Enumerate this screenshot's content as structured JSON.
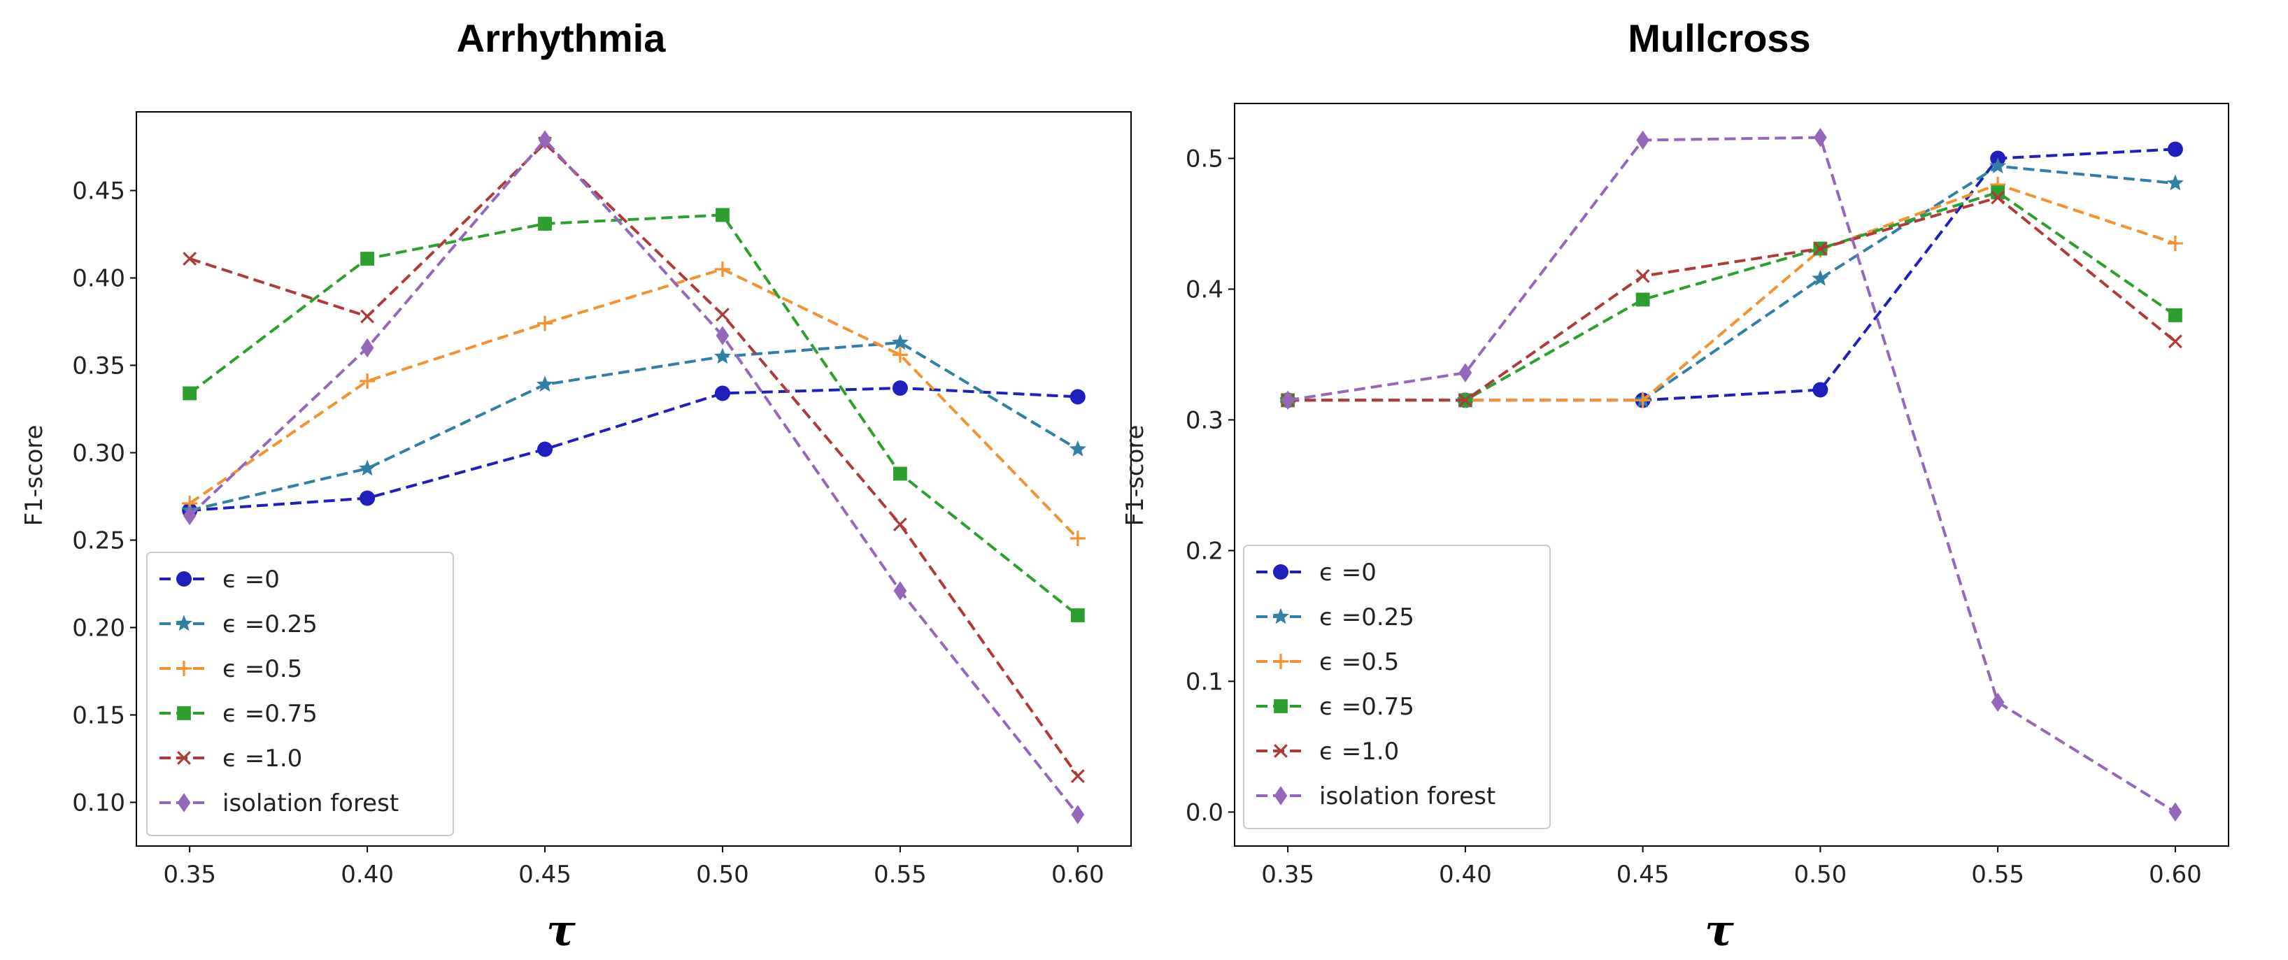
{
  "chart_data": [
    {
      "type": "line",
      "title": "Arrhythmia",
      "xlabel": "τ",
      "ylabel": "F1-score",
      "x": [
        0.35,
        0.4,
        0.45,
        0.5,
        0.55,
        0.6
      ],
      "xticks": [
        "0.35",
        "0.40",
        "0.45",
        "0.50",
        "0.55",
        "0.60"
      ],
      "xlim": [
        0.335,
        0.615
      ],
      "ylim": [
        0.075,
        0.495
      ],
      "yticks": [
        0.1,
        0.15,
        0.2,
        0.25,
        0.3,
        0.35,
        0.4,
        0.45
      ],
      "ytick_labels": [
        "0.10",
        "0.15",
        "0.20",
        "0.25",
        "0.30",
        "0.35",
        "0.40",
        "0.45"
      ],
      "legend_position": "lower-left",
      "series": [
        {
          "name": "ϵ =0",
          "color": "#1f1fbf",
          "marker": "circle",
          "values": [
            0.267,
            0.274,
            0.302,
            0.334,
            0.337,
            0.332
          ]
        },
        {
          "name": "ϵ =0.25",
          "color": "#2f7fa6",
          "marker": "star",
          "values": [
            0.267,
            0.291,
            0.339,
            0.355,
            0.363,
            0.302
          ]
        },
        {
          "name": "ϵ =0.5",
          "color": "#f5922f",
          "marker": "plus",
          "values": [
            0.271,
            0.341,
            0.374,
            0.405,
            0.356,
            0.251
          ]
        },
        {
          "name": "ϵ =0.75",
          "color": "#2ca02c",
          "marker": "square",
          "values": [
            0.334,
            0.411,
            0.431,
            0.436,
            0.288,
            0.207
          ]
        },
        {
          "name": "ϵ =1.0",
          "color": "#b03a3a",
          "marker": "x",
          "values": [
            0.411,
            0.378,
            0.477,
            0.379,
            0.259,
            0.115
          ]
        },
        {
          "name": "isolation forest",
          "color": "#9467bd",
          "marker": "diamond",
          "values": [
            0.264,
            0.36,
            0.479,
            0.367,
            0.221,
            0.093
          ]
        }
      ]
    },
    {
      "type": "line",
      "title": "Mullcross",
      "xlabel": "τ",
      "ylabel": "F1-score",
      "x": [
        0.35,
        0.4,
        0.45,
        0.5,
        0.55,
        0.6
      ],
      "xticks": [
        "0.35",
        "0.40",
        "0.45",
        "0.50",
        "0.55",
        "0.60"
      ],
      "xlim": [
        0.335,
        0.615
      ],
      "ylim": [
        -0.026,
        0.542
      ],
      "yticks": [
        0.0,
        0.1,
        0.2,
        0.3,
        0.4,
        0.5
      ],
      "ytick_labels": [
        "0.0",
        "0.1",
        "0.2",
        "0.3",
        "0.4",
        "0.5"
      ],
      "legend_position": "lower-left",
      "series": [
        {
          "name": "ϵ =0",
          "color": "#1f1fbf",
          "marker": "circle",
          "values": [
            0.315,
            0.315,
            0.315,
            0.323,
            0.5,
            0.507
          ]
        },
        {
          "name": "ϵ =0.25",
          "color": "#2f7fa6",
          "marker": "star",
          "values": [
            0.315,
            0.315,
            0.315,
            0.408,
            0.494,
            0.481
          ]
        },
        {
          "name": "ϵ =0.5",
          "color": "#f5922f",
          "marker": "plus",
          "values": [
            0.315,
            0.315,
            0.315,
            0.43,
            0.48,
            0.435
          ]
        },
        {
          "name": "ϵ =0.75",
          "color": "#2ca02c",
          "marker": "square",
          "values": [
            0.315,
            0.315,
            0.392,
            0.431,
            0.474,
            0.38
          ]
        },
        {
          "name": "ϵ =1.0",
          "color": "#b03a3a",
          "marker": "x",
          "values": [
            0.315,
            0.315,
            0.41,
            0.431,
            0.47,
            0.36
          ]
        },
        {
          "name": "isolation forest",
          "color": "#9467bd",
          "marker": "diamond",
          "values": [
            0.315,
            0.336,
            0.514,
            0.516,
            0.084,
            0.0
          ]
        }
      ]
    }
  ]
}
